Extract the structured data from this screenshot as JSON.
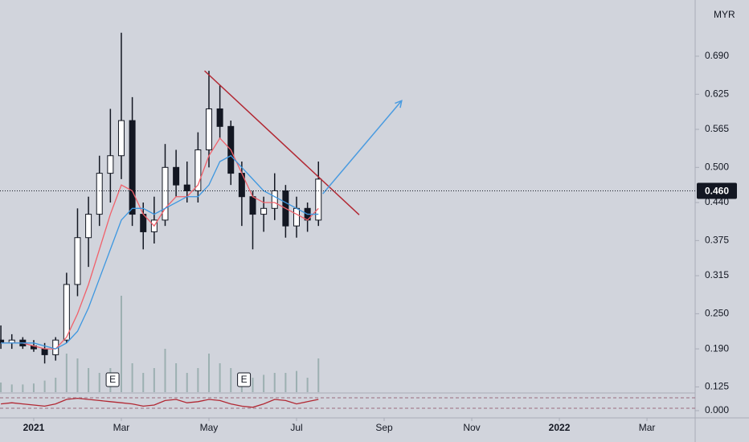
{
  "chart_data": {
    "type": "candlestick",
    "currency": "MYR",
    "xlim": [
      -0.77,
      15.1
    ],
    "xticks": [
      {
        "value": 0,
        "label": "2021"
      },
      {
        "value": 2,
        "label": "Mar"
      },
      {
        "value": 4,
        "label": "May"
      },
      {
        "value": 6,
        "label": "Jul"
      },
      {
        "value": 8,
        "label": "Sep"
      },
      {
        "value": 10,
        "label": "Nov"
      },
      {
        "value": 12,
        "label": "2022"
      },
      {
        "value": 14,
        "label": "Mar"
      }
    ],
    "ylim": [
      0.116,
      0.786
    ],
    "yticks": [
      0.125,
      {
        "value": 0.19,
        "label": "0.190"
      },
      {
        "value": 0.25,
        "label": "0.250"
      },
      0.315,
      0.375,
      {
        "value": 0.44,
        "label": "0.440"
      },
      {
        "value": 0.5,
        "label": "0.500"
      },
      0.565,
      0.625,
      {
        "value": 0.69,
        "label": "0.690"
      }
    ],
    "candle_color": "#131722",
    "candles": {
      "x": [
        -0.75,
        -0.5,
        -0.25,
        0,
        0.25,
        0.5,
        0.75,
        1,
        1.25,
        1.5,
        1.75,
        2,
        2.25,
        2.5,
        2.75,
        3,
        3.25,
        3.5,
        3.75,
        4,
        4.25,
        4.5,
        4.75,
        5,
        5.25,
        5.5,
        5.75,
        6,
        6.25,
        6.5
      ],
      "open": [
        0.205,
        0.2,
        0.205,
        0.195,
        0.19,
        0.18,
        0.205,
        0.3,
        0.38,
        0.42,
        0.49,
        0.52,
        0.58,
        0.42,
        0.39,
        0.41,
        0.5,
        0.47,
        0.46,
        0.53,
        0.6,
        0.57,
        0.49,
        0.45,
        0.42,
        0.43,
        0.46,
        0.4,
        0.43,
        0.41
      ],
      "high": [
        0.23,
        0.215,
        0.21,
        0.205,
        0.2,
        0.21,
        0.32,
        0.43,
        0.45,
        0.52,
        0.6,
        0.73,
        0.62,
        0.44,
        0.45,
        0.54,
        0.53,
        0.51,
        0.56,
        0.665,
        0.64,
        0.58,
        0.51,
        0.46,
        0.45,
        0.49,
        0.47,
        0.45,
        0.44,
        0.51
      ],
      "low": [
        0.19,
        0.19,
        0.19,
        0.185,
        0.165,
        0.17,
        0.2,
        0.28,
        0.33,
        0.4,
        0.44,
        0.48,
        0.4,
        0.36,
        0.37,
        0.4,
        0.45,
        0.44,
        0.44,
        0.5,
        0.55,
        0.47,
        0.4,
        0.36,
        0.39,
        0.41,
        0.38,
        0.38,
        0.39,
        0.4
      ],
      "close": [
        0.2,
        0.205,
        0.195,
        0.19,
        0.18,
        0.205,
        0.3,
        0.38,
        0.42,
        0.49,
        0.52,
        0.58,
        0.42,
        0.39,
        0.41,
        0.5,
        0.47,
        0.46,
        0.53,
        0.6,
        0.57,
        0.49,
        0.45,
        0.42,
        0.43,
        0.46,
        0.4,
        0.43,
        0.41,
        0.48
      ],
      "volume": [
        10,
        8,
        8,
        9,
        12,
        15,
        40,
        35,
        25,
        20,
        25,
        100,
        30,
        20,
        25,
        45,
        30,
        20,
        25,
        40,
        30,
        25,
        20,
        15,
        18,
        20,
        20,
        22,
        15,
        35
      ]
    },
    "volume_color": "#8fa6a6",
    "series": [
      {
        "color": "#f0606a",
        "values": [
          0.2,
          0.2,
          0.2,
          0.195,
          0.19,
          0.19,
          0.21,
          0.25,
          0.3,
          0.36,
          0.42,
          0.47,
          0.46,
          0.42,
          0.4,
          0.43,
          0.45,
          0.45,
          0.47,
          0.52,
          0.55,
          0.53,
          0.49,
          0.45,
          0.44,
          0.44,
          0.43,
          0.42,
          0.41,
          0.43
        ]
      },
      {
        "color": "#3d97e0",
        "values": [
          0.2,
          0.2,
          0.2,
          0.2,
          0.195,
          0.19,
          0.2,
          0.22,
          0.26,
          0.31,
          0.36,
          0.41,
          0.43,
          0.43,
          0.42,
          0.43,
          0.44,
          0.45,
          0.45,
          0.47,
          0.51,
          0.52,
          0.5,
          0.48,
          0.46,
          0.45,
          0.44,
          0.43,
          0.42,
          0.42
        ]
      }
    ],
    "drawings": [
      {
        "color": "#b22833",
        "x": [
          3.9,
          7.43
        ],
        "y": [
          0.665,
          0.419
        ]
      },
      {
        "color": "#4a9be0",
        "x": [
          6.6,
          8.4
        ],
        "y": [
          0.455,
          0.614
        ],
        "arrow": true
      }
    ],
    "last_price": {
      "value": 0.46,
      "label": "0.460"
    },
    "events": [
      {
        "x": 1.8,
        "label": "E"
      },
      {
        "x": 4.8,
        "label": "E"
      }
    ],
    "oscillator": {
      "ylim": [
        -0.25,
        0.75
      ],
      "yticks": [
        {
          "value": 0,
          "label": "0.000"
        }
      ],
      "levels": [
        0.57,
        0.107
      ],
      "series": [
        {
          "color": "#b22833",
          "values": [
            0.3,
            0.35,
            0.3,
            0.25,
            0.2,
            0.3,
            0.5,
            0.55,
            0.5,
            0.45,
            0.4,
            0.35,
            0.3,
            0.2,
            0.25,
            0.45,
            0.5,
            0.35,
            0.4,
            0.5,
            0.45,
            0.3,
            0.2,
            0.15,
            0.3,
            0.5,
            0.45,
            0.3,
            0.4,
            0.5
          ]
        }
      ]
    }
  }
}
